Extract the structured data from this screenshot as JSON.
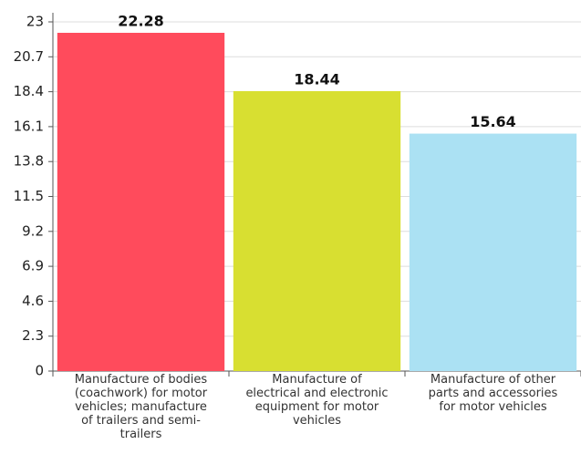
{
  "chart_data": {
    "type": "bar",
    "categories": [
      "Manufacture of bodies (coachwork) for motor vehicles; manufacture of trailers and semi-trailers",
      "Manufacture of electrical and electronic equipment for motor vehicles",
      "Manufacture of other parts and accessories for motor vehicles"
    ],
    "values": [
      22.28,
      18.44,
      15.64
    ],
    "colors": [
      "#ff4b5c",
      "#d8df31",
      "#abe1f3"
    ],
    "ylim": [
      0,
      23
    ],
    "yticks": [
      0,
      2.3,
      4.6,
      6.9,
      9.2,
      11.5,
      13.8,
      16.1,
      18.4,
      20.7,
      23
    ],
    "grid": true
  }
}
